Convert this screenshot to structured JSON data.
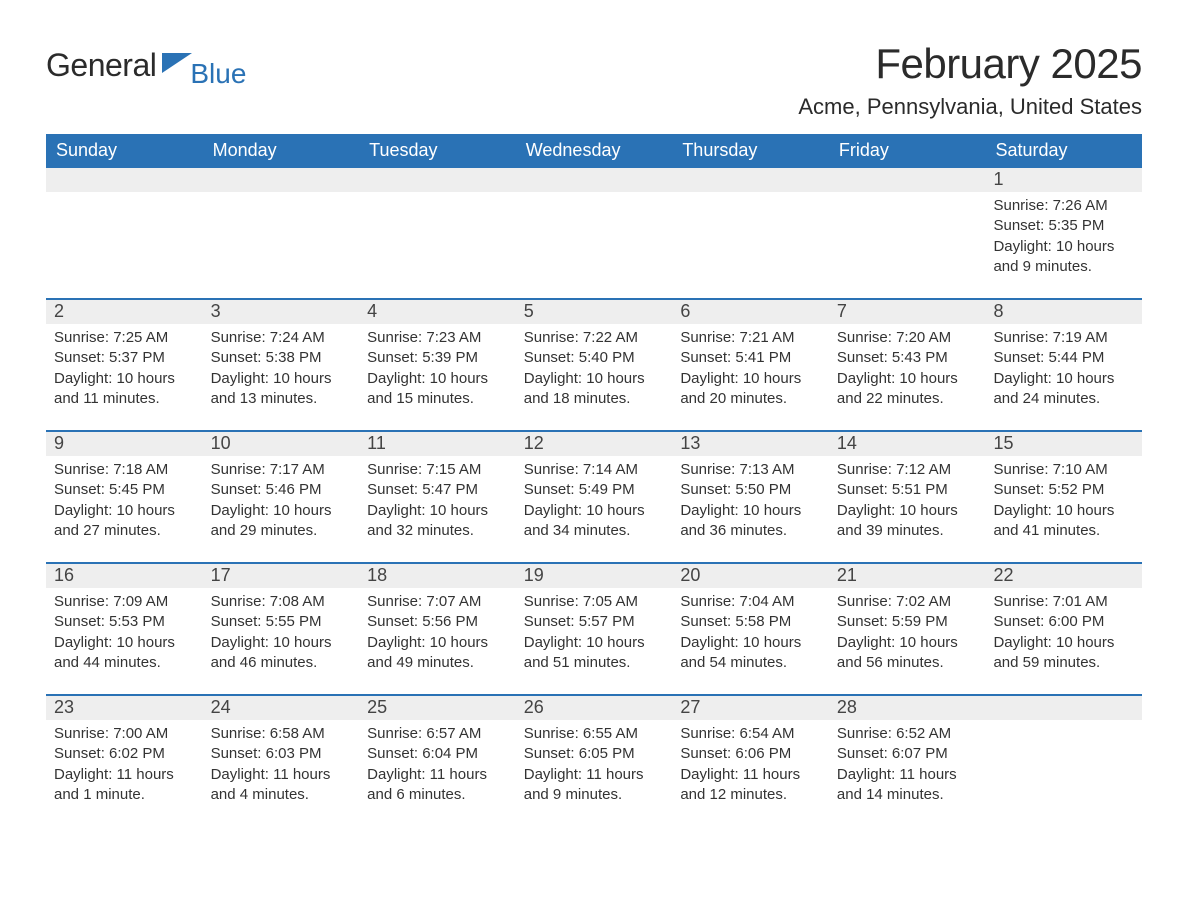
{
  "logo": {
    "word1": "General",
    "word2": "Blue",
    "accent_color": "#2a72b5"
  },
  "title": "February 2025",
  "location": "Acme, Pennsylvania, United States",
  "colors": {
    "header_bg": "#2a72b5",
    "row_bg": "#eeeeee",
    "week_border": "#2a72b5",
    "text": "#333333",
    "page_bg": "#ffffff"
  },
  "fonts": {
    "family": "Segoe UI, Arial, sans-serif",
    "title_pt": 42,
    "location_pt": 22,
    "dow_pt": 18,
    "body_pt": 15
  },
  "days_of_week": [
    "Sunday",
    "Monday",
    "Tuesday",
    "Wednesday",
    "Thursday",
    "Friday",
    "Saturday"
  ],
  "weeks": [
    {
      "days": [
        {
          "n": "",
          "sunrise": "",
          "sunset": "",
          "daylight": "",
          "daylight2": ""
        },
        {
          "n": "",
          "sunrise": "",
          "sunset": "",
          "daylight": "",
          "daylight2": ""
        },
        {
          "n": "",
          "sunrise": "",
          "sunset": "",
          "daylight": "",
          "daylight2": ""
        },
        {
          "n": "",
          "sunrise": "",
          "sunset": "",
          "daylight": "",
          "daylight2": ""
        },
        {
          "n": "",
          "sunrise": "",
          "sunset": "",
          "daylight": "",
          "daylight2": ""
        },
        {
          "n": "",
          "sunrise": "",
          "sunset": "",
          "daylight": "",
          "daylight2": ""
        },
        {
          "n": "1",
          "sunrise": "Sunrise: 7:26 AM",
          "sunset": "Sunset: 5:35 PM",
          "daylight": "Daylight: 10 hours",
          "daylight2": "and 9 minutes."
        }
      ]
    },
    {
      "days": [
        {
          "n": "2",
          "sunrise": "Sunrise: 7:25 AM",
          "sunset": "Sunset: 5:37 PM",
          "daylight": "Daylight: 10 hours",
          "daylight2": "and 11 minutes."
        },
        {
          "n": "3",
          "sunrise": "Sunrise: 7:24 AM",
          "sunset": "Sunset: 5:38 PM",
          "daylight": "Daylight: 10 hours",
          "daylight2": "and 13 minutes."
        },
        {
          "n": "4",
          "sunrise": "Sunrise: 7:23 AM",
          "sunset": "Sunset: 5:39 PM",
          "daylight": "Daylight: 10 hours",
          "daylight2": "and 15 minutes."
        },
        {
          "n": "5",
          "sunrise": "Sunrise: 7:22 AM",
          "sunset": "Sunset: 5:40 PM",
          "daylight": "Daylight: 10 hours",
          "daylight2": "and 18 minutes."
        },
        {
          "n": "6",
          "sunrise": "Sunrise: 7:21 AM",
          "sunset": "Sunset: 5:41 PM",
          "daylight": "Daylight: 10 hours",
          "daylight2": "and 20 minutes."
        },
        {
          "n": "7",
          "sunrise": "Sunrise: 7:20 AM",
          "sunset": "Sunset: 5:43 PM",
          "daylight": "Daylight: 10 hours",
          "daylight2": "and 22 minutes."
        },
        {
          "n": "8",
          "sunrise": "Sunrise: 7:19 AM",
          "sunset": "Sunset: 5:44 PM",
          "daylight": "Daylight: 10 hours",
          "daylight2": "and 24 minutes."
        }
      ]
    },
    {
      "days": [
        {
          "n": "9",
          "sunrise": "Sunrise: 7:18 AM",
          "sunset": "Sunset: 5:45 PM",
          "daylight": "Daylight: 10 hours",
          "daylight2": "and 27 minutes."
        },
        {
          "n": "10",
          "sunrise": "Sunrise: 7:17 AM",
          "sunset": "Sunset: 5:46 PM",
          "daylight": "Daylight: 10 hours",
          "daylight2": "and 29 minutes."
        },
        {
          "n": "11",
          "sunrise": "Sunrise: 7:15 AM",
          "sunset": "Sunset: 5:47 PM",
          "daylight": "Daylight: 10 hours",
          "daylight2": "and 32 minutes."
        },
        {
          "n": "12",
          "sunrise": "Sunrise: 7:14 AM",
          "sunset": "Sunset: 5:49 PM",
          "daylight": "Daylight: 10 hours",
          "daylight2": "and 34 minutes."
        },
        {
          "n": "13",
          "sunrise": "Sunrise: 7:13 AM",
          "sunset": "Sunset: 5:50 PM",
          "daylight": "Daylight: 10 hours",
          "daylight2": "and 36 minutes."
        },
        {
          "n": "14",
          "sunrise": "Sunrise: 7:12 AM",
          "sunset": "Sunset: 5:51 PM",
          "daylight": "Daylight: 10 hours",
          "daylight2": "and 39 minutes."
        },
        {
          "n": "15",
          "sunrise": "Sunrise: 7:10 AM",
          "sunset": "Sunset: 5:52 PM",
          "daylight": "Daylight: 10 hours",
          "daylight2": "and 41 minutes."
        }
      ]
    },
    {
      "days": [
        {
          "n": "16",
          "sunrise": "Sunrise: 7:09 AM",
          "sunset": "Sunset: 5:53 PM",
          "daylight": "Daylight: 10 hours",
          "daylight2": "and 44 minutes."
        },
        {
          "n": "17",
          "sunrise": "Sunrise: 7:08 AM",
          "sunset": "Sunset: 5:55 PM",
          "daylight": "Daylight: 10 hours",
          "daylight2": "and 46 minutes."
        },
        {
          "n": "18",
          "sunrise": "Sunrise: 7:07 AM",
          "sunset": "Sunset: 5:56 PM",
          "daylight": "Daylight: 10 hours",
          "daylight2": "and 49 minutes."
        },
        {
          "n": "19",
          "sunrise": "Sunrise: 7:05 AM",
          "sunset": "Sunset: 5:57 PM",
          "daylight": "Daylight: 10 hours",
          "daylight2": "and 51 minutes."
        },
        {
          "n": "20",
          "sunrise": "Sunrise: 7:04 AM",
          "sunset": "Sunset: 5:58 PM",
          "daylight": "Daylight: 10 hours",
          "daylight2": "and 54 minutes."
        },
        {
          "n": "21",
          "sunrise": "Sunrise: 7:02 AM",
          "sunset": "Sunset: 5:59 PM",
          "daylight": "Daylight: 10 hours",
          "daylight2": "and 56 minutes."
        },
        {
          "n": "22",
          "sunrise": "Sunrise: 7:01 AM",
          "sunset": "Sunset: 6:00 PM",
          "daylight": "Daylight: 10 hours",
          "daylight2": "and 59 minutes."
        }
      ]
    },
    {
      "days": [
        {
          "n": "23",
          "sunrise": "Sunrise: 7:00 AM",
          "sunset": "Sunset: 6:02 PM",
          "daylight": "Daylight: 11 hours",
          "daylight2": "and 1 minute."
        },
        {
          "n": "24",
          "sunrise": "Sunrise: 6:58 AM",
          "sunset": "Sunset: 6:03 PM",
          "daylight": "Daylight: 11 hours",
          "daylight2": "and 4 minutes."
        },
        {
          "n": "25",
          "sunrise": "Sunrise: 6:57 AM",
          "sunset": "Sunset: 6:04 PM",
          "daylight": "Daylight: 11 hours",
          "daylight2": "and 6 minutes."
        },
        {
          "n": "26",
          "sunrise": "Sunrise: 6:55 AM",
          "sunset": "Sunset: 6:05 PM",
          "daylight": "Daylight: 11 hours",
          "daylight2": "and 9 minutes."
        },
        {
          "n": "27",
          "sunrise": "Sunrise: 6:54 AM",
          "sunset": "Sunset: 6:06 PM",
          "daylight": "Daylight: 11 hours",
          "daylight2": "and 12 minutes."
        },
        {
          "n": "28",
          "sunrise": "Sunrise: 6:52 AM",
          "sunset": "Sunset: 6:07 PM",
          "daylight": "Daylight: 11 hours",
          "daylight2": "and 14 minutes."
        },
        {
          "n": "",
          "sunrise": "",
          "sunset": "",
          "daylight": "",
          "daylight2": ""
        }
      ]
    }
  ]
}
